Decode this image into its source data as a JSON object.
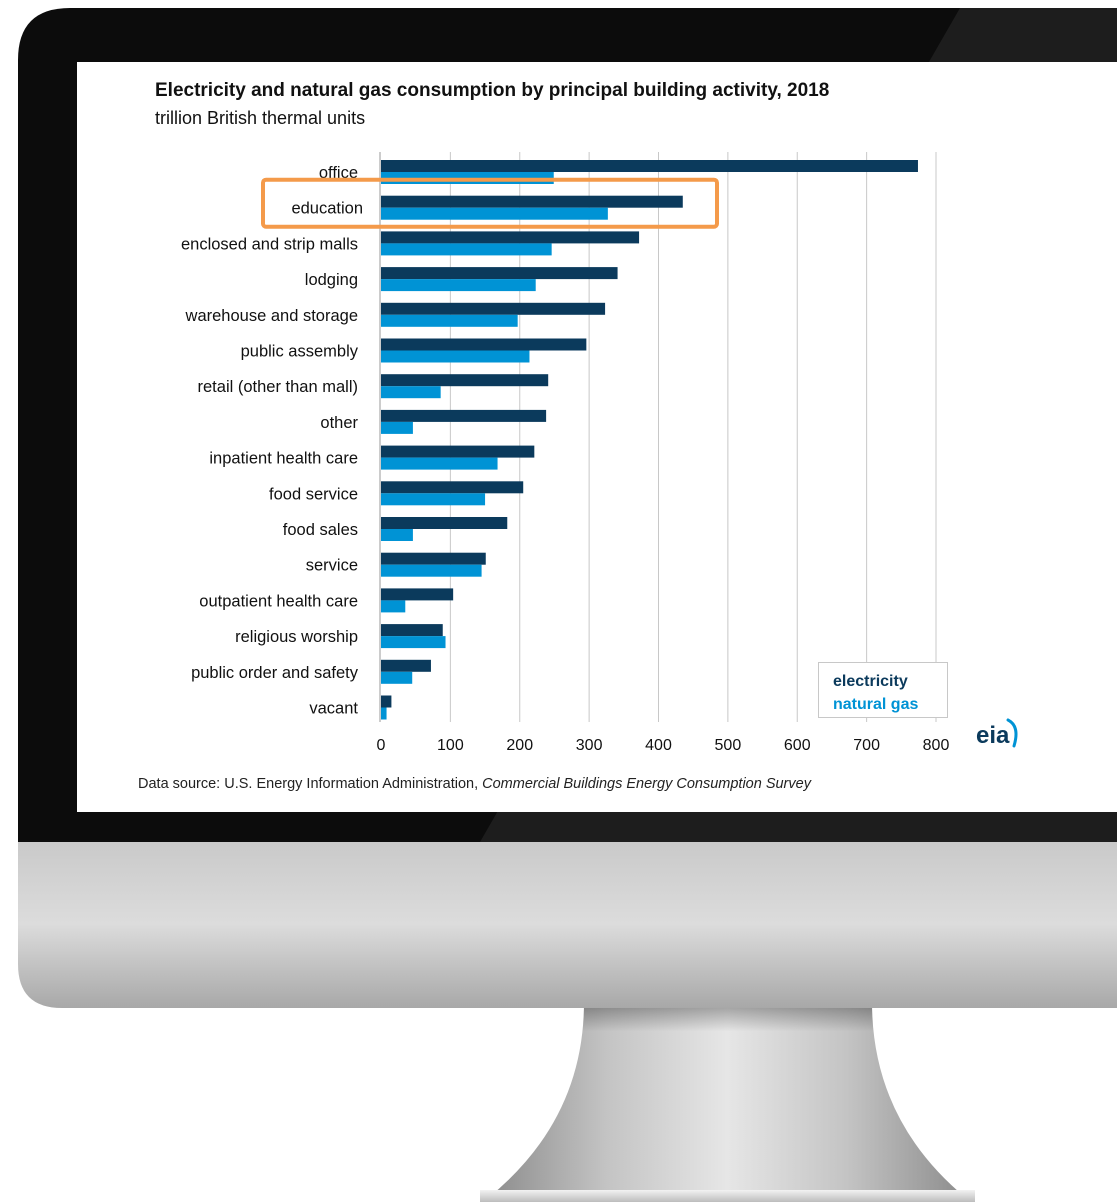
{
  "colors": {
    "electricity": "#0b3a5c",
    "natural_gas": "#0093d5",
    "highlight": "#f49a4a",
    "grid": "#c8c8c8"
  },
  "chart_data": {
    "type": "bar",
    "orientation": "horizontal",
    "title": "Electricity and natural gas consumption  by principal building activity, 2018",
    "subtitle": "trillion British thermal units",
    "categories": [
      "office",
      "education",
      "enclosed and strip malls",
      "lodging",
      "warehouse and storage",
      "public assembly",
      "retail (other than mall)",
      "other",
      "inpatient health care",
      "food service",
      "food sales",
      "service",
      "outpatient health care",
      "religious worship",
      "public order and safety",
      "vacant"
    ],
    "series": [
      {
        "name": "electricity",
        "values": [
          774,
          435,
          372,
          341,
          323,
          296,
          241,
          238,
          221,
          205,
          182,
          151,
          104,
          89,
          72,
          15
        ]
      },
      {
        "name": "natural gas",
        "values": [
          249,
          327,
          246,
          223,
          197,
          214,
          86,
          46,
          168,
          150,
          46,
          145,
          35,
          93,
          45,
          8
        ]
      }
    ],
    "xlim": [
      0,
      800
    ],
    "xticks": [
      "0",
      "100",
      "200",
      "300",
      "400",
      "500",
      "600",
      "700",
      "800"
    ],
    "grid": true,
    "legend_position": "bottom-right",
    "highlighted_category": "education",
    "source_prefix": "Data source: U.S. Energy Information Administration, ",
    "source_italic": "Commercial Buildings Energy Consumption Survey"
  },
  "logo": {
    "text": "eia"
  }
}
